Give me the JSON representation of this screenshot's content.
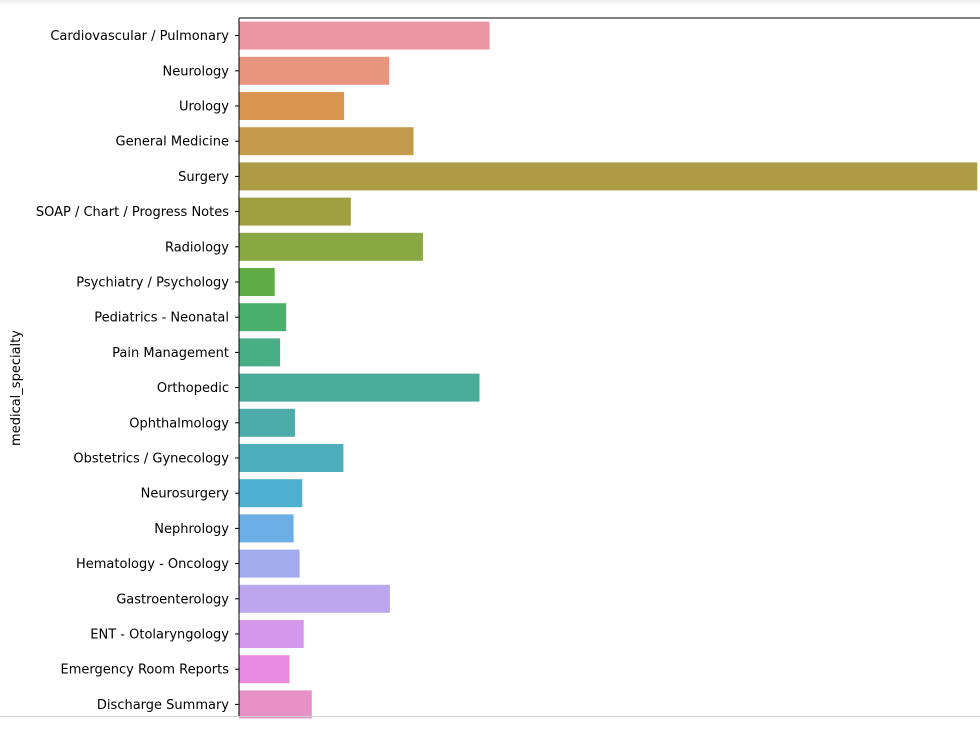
{
  "chart_data": {
    "type": "bar",
    "orientation": "horizontal",
    "ylabel": "medical_specialty",
    "xlabel": "",
    "xlim": [
      0,
      1100
    ],
    "categories": [
      "Cardiovascular / Pulmonary",
      "Neurology",
      "Urology",
      "General Medicine",
      "Surgery",
      "SOAP / Chart / Progress Notes",
      "Radiology",
      "Psychiatry / Psychology",
      "Pediatrics - Neonatal",
      "Pain Management",
      "Orthopedic",
      "Ophthalmology",
      "Obstetrics / Gynecology",
      "Neurosurgery",
      "Nephrology",
      "Hematology - Oncology",
      "Gastroenterology",
      "ENT - Otolaryngology",
      "Emergency Room Reports",
      "Discharge Summary"
    ],
    "values": [
      372,
      223,
      156,
      259,
      1096,
      166,
      273,
      53,
      70,
      61,
      357,
      83,
      155,
      94,
      81,
      90,
      224,
      96,
      75,
      108
    ],
    "colors": [
      "#ea96a3",
      "#e89580",
      "#d89350",
      "#c49a4c",
      "#ad9c45",
      "#a0a040",
      "#88a843",
      "#61ad45",
      "#4ab06c",
      "#49ae86",
      "#4aab98",
      "#4bacaa",
      "#4daebb",
      "#4eb0d0",
      "#6aaee4",
      "#a2acec",
      "#bca6ee",
      "#d497ea",
      "#e98be1",
      "#e692c6"
    ],
    "grid": false
  }
}
